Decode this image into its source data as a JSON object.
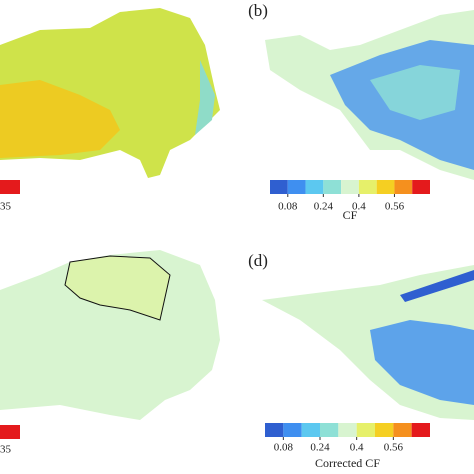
{
  "panels": [
    {
      "label": null,
      "colorbar": {
        "colors": [
          "#e8d24a",
          "#f2a21e",
          "#e41a1c"
        ],
        "tick_labels": [
          "35"
        ]
      }
    },
    {
      "label": "(b)",
      "colorbar": {
        "colors": [
          "#2f5fd0",
          "#3f8ff0",
          "#5cc8f0",
          "#8ee0d6",
          "#d8f4d0",
          "#e6f06a",
          "#f5cf22",
          "#f5901e",
          "#e41a1c"
        ],
        "ticks": [
          0.08,
          0.24,
          0.4,
          0.56
        ],
        "title": "CF"
      }
    },
    {
      "label": null,
      "colorbar": {
        "colors": [
          "#e8d24a",
          "#f2a21e",
          "#e41a1c"
        ],
        "tick_labels": [
          "35"
        ]
      }
    },
    {
      "label": "(d)",
      "colorbar": {
        "colors": [
          "#2f5fd0",
          "#3f8ff0",
          "#5cc8f0",
          "#8ee0d6",
          "#d8f4d0",
          "#e6f06a",
          "#f5cf22",
          "#f5901e",
          "#e41a1c"
        ],
        "ticks": [
          0.08,
          0.24,
          0.4,
          0.56
        ],
        "title": "Corrected CF"
      }
    }
  ]
}
